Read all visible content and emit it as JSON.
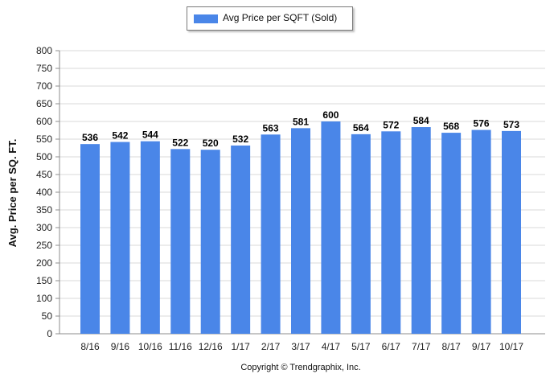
{
  "chart_data": {
    "type": "bar",
    "categories": [
      "8/16",
      "9/16",
      "10/16",
      "11/16",
      "12/16",
      "1/17",
      "2/17",
      "3/17",
      "4/17",
      "5/17",
      "6/17",
      "7/17",
      "8/17",
      "9/17",
      "10/17"
    ],
    "series": [
      {
        "name": "Avg Price per SQFT (Sold)",
        "values": [
          536,
          542,
          544,
          522,
          520,
          532,
          563,
          581,
          600,
          564,
          572,
          584,
          568,
          576,
          573
        ]
      }
    ],
    "data_labels": [
      "536",
      "542",
      "544",
      "522",
      "520",
      "532",
      "563",
      "581",
      "600",
      "564",
      "572",
      "584",
      "568",
      "576",
      "573"
    ],
    "ylabel": "Avg. Price per SQ. FT.",
    "ylim": [
      0,
      800
    ],
    "yticks": [
      "0",
      "50",
      "100",
      "150",
      "200",
      "250",
      "300",
      "350",
      "400",
      "450",
      "500",
      "550",
      "600",
      "650",
      "700",
      "750",
      "800"
    ],
    "grid": true,
    "legend_placement": "top-center",
    "bar_color": "#4a86e8",
    "footer": "Copyright © Trendgraphix, Inc."
  }
}
